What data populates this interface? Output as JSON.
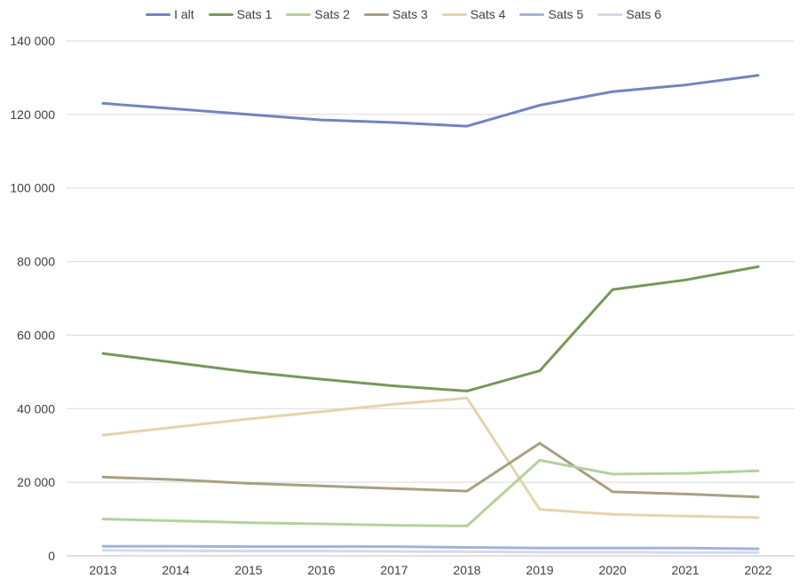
{
  "chart_data": {
    "type": "line",
    "categories": [
      "2013",
      "2014",
      "2015",
      "2016",
      "2017",
      "2018",
      "2019",
      "2020",
      "2021",
      "2022"
    ],
    "ylim": [
      0,
      140000
    ],
    "yticks": [
      0,
      20000,
      40000,
      60000,
      80000,
      100000,
      120000,
      140000
    ],
    "ytick_labels": [
      "0",
      "20 000",
      "40 000",
      "60 000",
      "80 000",
      "100 000",
      "120 000",
      "140 000"
    ],
    "grid": true,
    "legend_position": "top",
    "series": [
      {
        "name": "I alt",
        "color": "#7283c2",
        "values": [
          123000,
          121500,
          120000,
          118500,
          117800,
          116800,
          122500,
          126200,
          128000,
          130600
        ]
      },
      {
        "name": "Sats 1",
        "color": "#76985a",
        "values": [
          55000,
          52500,
          50000,
          48000,
          46200,
          44800,
          50300,
          72400,
          75000,
          78600
        ]
      },
      {
        "name": "Sats 2",
        "color": "#b5d09e",
        "values": [
          10000,
          9500,
          9000,
          8700,
          8300,
          8100,
          26000,
          22200,
          22400,
          23100
        ]
      },
      {
        "name": "Sats 3",
        "color": "#a8a082",
        "values": [
          21400,
          20700,
          19700,
          19000,
          18300,
          17600,
          30600,
          17400,
          16800,
          16000
        ]
      },
      {
        "name": "Sats 4",
        "color": "#e6d3ac",
        "values": [
          32800,
          35000,
          37200,
          39200,
          41200,
          42900,
          12600,
          11300,
          10800,
          10400
        ]
      },
      {
        "name": "Sats 5",
        "color": "#a5b1d8",
        "values": [
          2600,
          2600,
          2500,
          2500,
          2500,
          2300,
          2100,
          2100,
          2100,
          1900
        ]
      },
      {
        "name": "Sats 6",
        "color": "#d3d9ea",
        "values": [
          1500,
          1400,
          1300,
          1300,
          1200,
          1100,
          1000,
          1000,
          900,
          900
        ]
      }
    ]
  }
}
